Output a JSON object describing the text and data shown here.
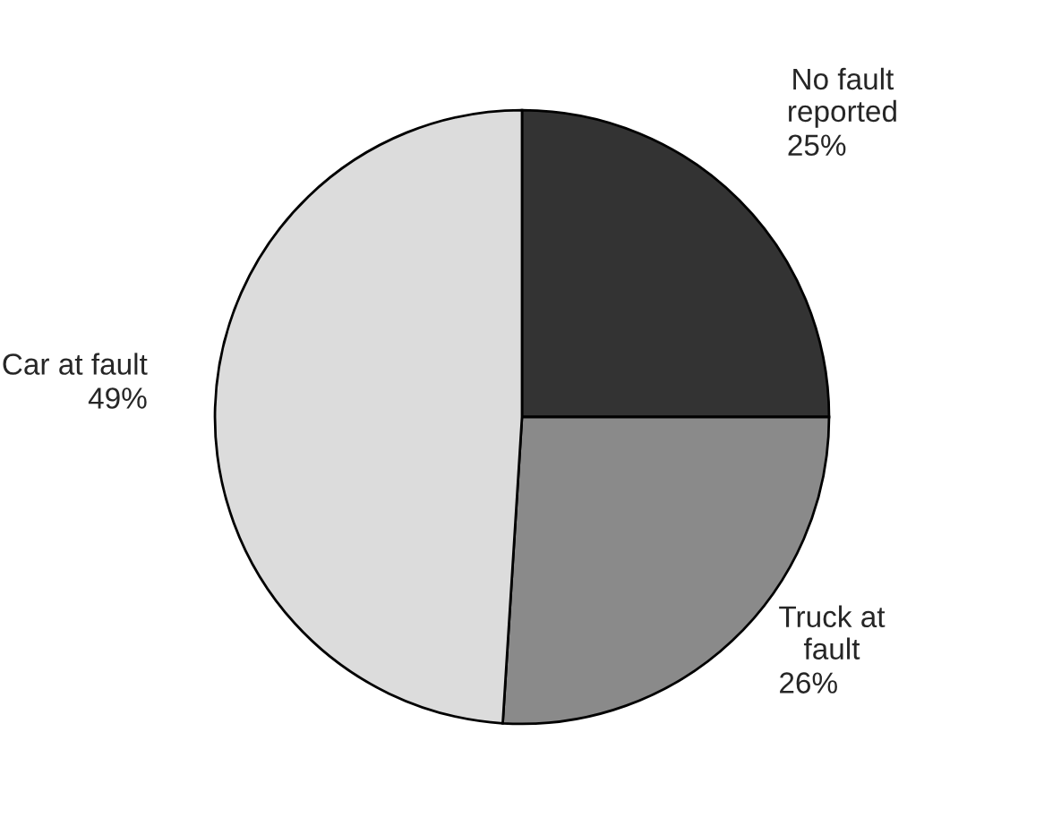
{
  "chart_data": {
    "type": "pie",
    "categories": [
      "No fault\nreported",
      "Truck at\nfault",
      "Car at fault"
    ],
    "values": [
      25,
      26,
      49
    ],
    "colors": [
      "#333333",
      "#8a8a8a",
      "#dcdcdc"
    ],
    "value_labels": [
      "25%",
      "26%",
      "49%"
    ]
  }
}
